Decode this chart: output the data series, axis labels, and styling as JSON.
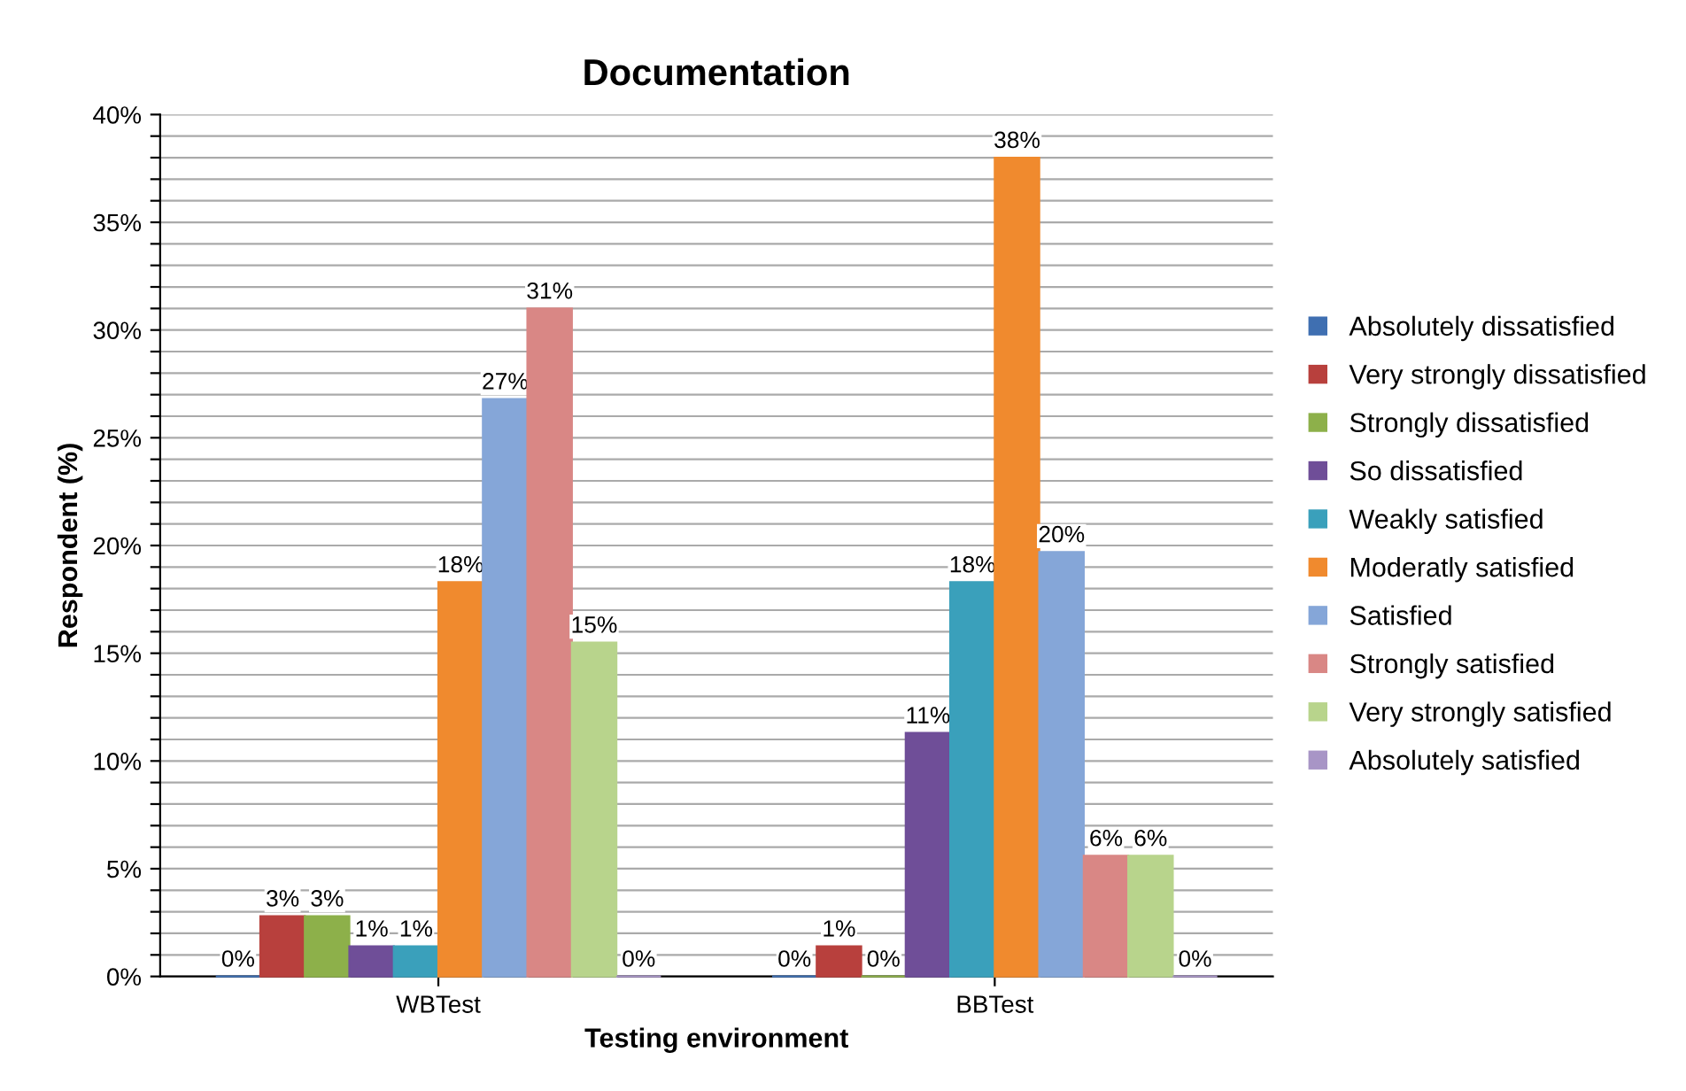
{
  "chart_data": {
    "type": "bar",
    "title": "Documentation",
    "xlabel": "Testing environment",
    "ylabel": "Respondent (%)",
    "categories": [
      "WBTest",
      "BBTest"
    ],
    "series": [
      {
        "name": "Absolutely dissatisfied",
        "color": "#3f6fb1",
        "values": [
          0,
          0
        ],
        "value_labels": [
          "0%",
          "0%"
        ]
      },
      {
        "name": "Very strongly dissatisfied",
        "color": "#b8403d",
        "values": [
          2.8,
          1.4
        ],
        "value_labels": [
          "3%",
          "1%"
        ]
      },
      {
        "name": "Strongly dissatisfied",
        "color": "#8db04a",
        "values": [
          2.8,
          0
        ],
        "value_labels": [
          "3%",
          "0%"
        ]
      },
      {
        "name": "So dissatisfied",
        "color": "#6f4e98",
        "values": [
          1.4,
          11.3
        ],
        "value_labels": [
          "1%",
          "11%"
        ]
      },
      {
        "name": "Weakly satisfied",
        "color": "#3aa0bb",
        "values": [
          1.4,
          18.3
        ],
        "value_labels": [
          "1%",
          "18%"
        ]
      },
      {
        "name": "Moderatly satisfied",
        "color": "#f08a2e",
        "values": [
          18.3,
          38
        ],
        "value_labels": [
          "18%",
          "38%"
        ]
      },
      {
        "name": "Satisfied",
        "color": "#85a6d8",
        "values": [
          26.8,
          19.7
        ],
        "value_labels": [
          "27%",
          "20%"
        ]
      },
      {
        "name": "Strongly satisfied",
        "color": "#d98785",
        "values": [
          31,
          5.6
        ],
        "value_labels": [
          "31%",
          "6%"
        ]
      },
      {
        "name": "Very strongly satisfied",
        "color": "#b8d48c",
        "values": [
          15.5,
          5.6
        ],
        "value_labels": [
          "15%",
          "6%"
        ]
      },
      {
        "name": "Absolutely satisfied",
        "color": "#a895c6",
        "values": [
          0,
          0
        ],
        "value_labels": [
          "0%",
          "0%"
        ]
      }
    ],
    "ylim": [
      0,
      40
    ],
    "yticks": [
      {
        "value": 0,
        "label": "0%"
      },
      {
        "value": 1,
        "label": null
      },
      {
        "value": 2,
        "label": null
      },
      {
        "value": 3,
        "label": null
      },
      {
        "value": 4,
        "label": null
      },
      {
        "value": 5,
        "label": "5%"
      },
      {
        "value": 6,
        "label": null
      },
      {
        "value": 7,
        "label": null
      },
      {
        "value": 8,
        "label": null
      },
      {
        "value": 9,
        "label": null
      },
      {
        "value": 10,
        "label": "10%"
      },
      {
        "value": 11,
        "label": null
      },
      {
        "value": 12,
        "label": null
      },
      {
        "value": 13,
        "label": null
      },
      {
        "value": 14,
        "label": null
      },
      {
        "value": 15,
        "label": "15%"
      },
      {
        "value": 16,
        "label": null
      },
      {
        "value": 17,
        "label": null
      },
      {
        "value": 18,
        "label": null
      },
      {
        "value": 19,
        "label": null
      },
      {
        "value": 20,
        "label": "20%"
      },
      {
        "value": 21,
        "label": null
      },
      {
        "value": 22,
        "label": null
      },
      {
        "value": 23,
        "label": null
      },
      {
        "value": 24,
        "label": null
      },
      {
        "value": 25,
        "label": "25%"
      },
      {
        "value": 26,
        "label": null
      },
      {
        "value": 27,
        "label": null
      },
      {
        "value": 28,
        "label": null
      },
      {
        "value": 29,
        "label": null
      },
      {
        "value": 30,
        "label": "30%"
      },
      {
        "value": 31,
        "label": null
      },
      {
        "value": 32,
        "label": null
      },
      {
        "value": 33,
        "label": null
      },
      {
        "value": 34,
        "label": null
      },
      {
        "value": 35,
        "label": "35%"
      },
      {
        "value": 36,
        "label": null
      },
      {
        "value": 37,
        "label": null
      },
      {
        "value": 38,
        "label": null
      },
      {
        "value": 39,
        "label": null
      },
      {
        "value": 40,
        "label": "40%"
      }
    ],
    "grid": "y",
    "legend": "right"
  }
}
